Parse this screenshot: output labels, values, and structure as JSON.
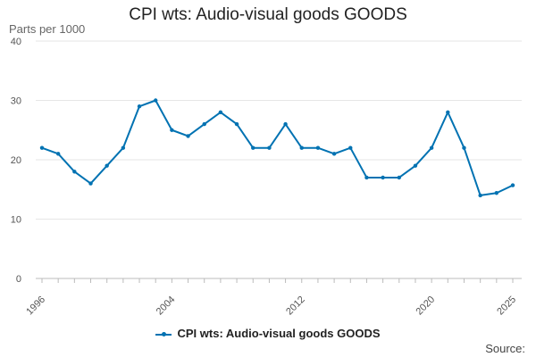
{
  "chart_data": {
    "type": "line",
    "title": "CPI wts: Audio-visual goods GOODS",
    "ylabel": "Parts per 1000",
    "xlabel": "",
    "ylim": [
      0,
      40
    ],
    "xlim": [
      1996,
      2025
    ],
    "y_ticks": [
      0,
      10,
      20,
      30,
      40
    ],
    "x_ticks": [
      1996,
      2004,
      2012,
      2020,
      2025
    ],
    "grid": true,
    "legend": "bottom-center",
    "series": [
      {
        "name": "CPI wts: Audio-visual goods GOODS",
        "color": "#0072b2",
        "x": [
          1996,
          1997,
          1998,
          1999,
          2000,
          2001,
          2002,
          2003,
          2004,
          2005,
          2006,
          2007,
          2008,
          2009,
          2010,
          2011,
          2012,
          2013,
          2014,
          2015,
          2016,
          2017,
          2018,
          2019,
          2020,
          2021,
          2022,
          2023,
          2024,
          2025
        ],
        "values": [
          22,
          21,
          18,
          16,
          19,
          22,
          29,
          30,
          25,
          24,
          26,
          28,
          26,
          22,
          22,
          26,
          22,
          22,
          21,
          22,
          17,
          17,
          17,
          19,
          22,
          28,
          22,
          14,
          14.4,
          15.7
        ]
      }
    ]
  },
  "source_label": "Source:"
}
